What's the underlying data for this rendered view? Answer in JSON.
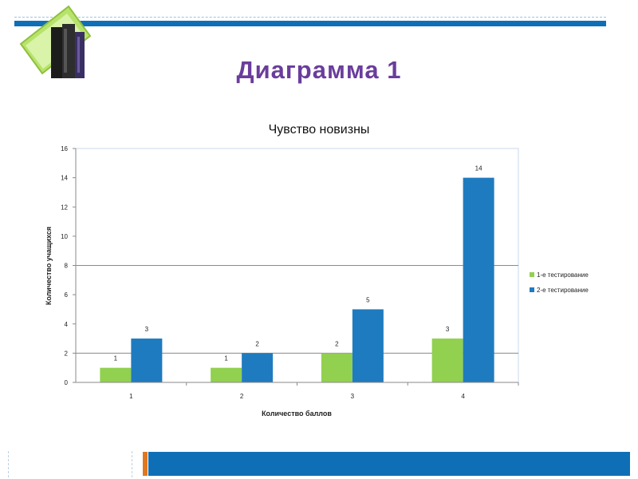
{
  "slide": {
    "title": "Диаграмма 1"
  },
  "decor": {
    "icon": "books-icon",
    "accent_color": "#0f6fb6",
    "title_color": "#6a3d9c",
    "orange_accent": "#e1781c"
  },
  "chart_data": {
    "type": "bar",
    "title": "Чувство новизны",
    "xlabel": "Количество баллов",
    "ylabel": "Количество учащихся",
    "categories": [
      "1",
      "2",
      "3",
      "4"
    ],
    "series": [
      {
        "name": "1-е тестирование",
        "values": [
          1,
          1,
          2,
          3
        ],
        "color": "#92d050"
      },
      {
        "name": "2-е тестирование",
        "values": [
          3,
          2,
          5,
          14
        ],
        "color": "#1f7bbf"
      }
    ],
    "ylim": [
      0,
      16
    ],
    "yticks": [
      "0",
      "2",
      "4",
      "6",
      "8",
      "10",
      "12",
      "14",
      "16"
    ],
    "grid": true,
    "legend": "right"
  }
}
